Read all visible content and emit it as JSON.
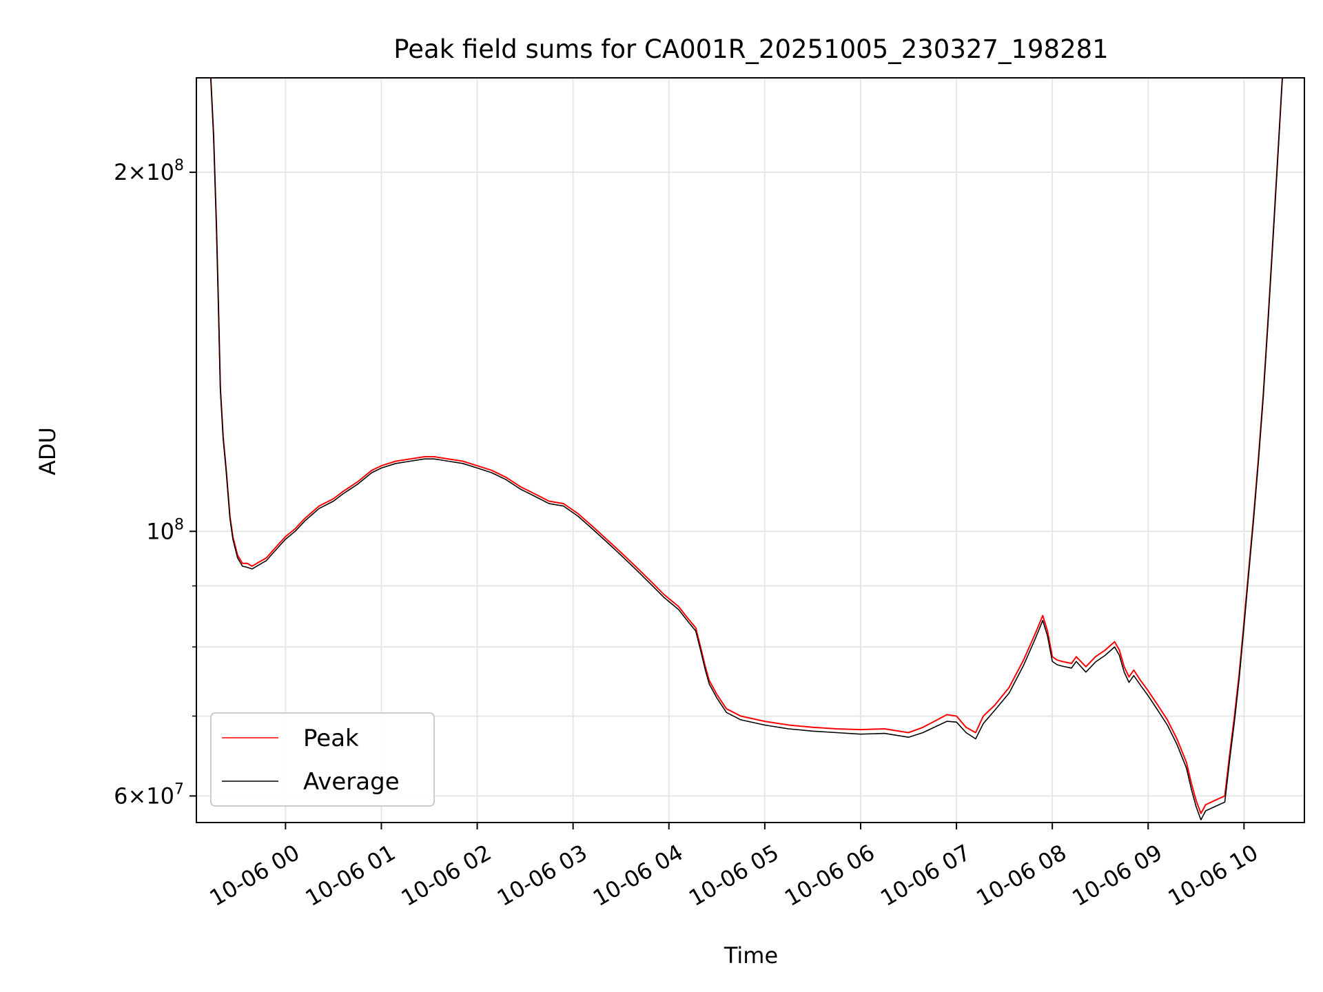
{
  "chart_data": {
    "type": "line",
    "title": "Peak field sums for CA001R_20251005_230327_198281",
    "xlabel": "Time",
    "ylabel": "ADU",
    "yscale": "log",
    "ylim": [
      57000000,
      240000000
    ],
    "xlim_hours": [
      -0.93,
      10.63
    ],
    "x_ticks": [
      {
        "value": 0,
        "label": "10-06 00"
      },
      {
        "value": 1,
        "label": "10-06 01"
      },
      {
        "value": 2,
        "label": "10-06 02"
      },
      {
        "value": 3,
        "label": "10-06 03"
      },
      {
        "value": 4,
        "label": "10-06 04"
      },
      {
        "value": 5,
        "label": "10-06 05"
      },
      {
        "value": 6,
        "label": "10-06 06"
      },
      {
        "value": 7,
        "label": "10-06 07"
      },
      {
        "value": 8,
        "label": "10-06 08"
      },
      {
        "value": 9,
        "label": "10-06 09"
      },
      {
        "value": 10,
        "label": "10-06 10"
      }
    ],
    "y_major_ticks": [
      {
        "value": 60000000,
        "mantissa": "6",
        "exponent": "7"
      },
      {
        "value": 100000000,
        "mantissa": "",
        "exponent": "8"
      },
      {
        "value": 200000000,
        "mantissa": "2",
        "exponent": "8"
      }
    ],
    "y_minor_ticks": [
      70000000,
      80000000,
      90000000
    ],
    "grid": true,
    "legend_position": "lower-left",
    "x_hours": [
      -0.78,
      -0.75,
      -0.72,
      -0.7,
      -0.68,
      -0.65,
      -0.62,
      -0.58,
      -0.55,
      -0.5,
      -0.45,
      -0.4,
      -0.35,
      -0.3,
      -0.25,
      -0.2,
      -0.15,
      -0.1,
      -0.05,
      0.0,
      0.1,
      0.2,
      0.35,
      0.5,
      0.6,
      0.75,
      0.9,
      1.0,
      1.15,
      1.3,
      1.45,
      1.55,
      1.7,
      1.85,
      2.0,
      2.15,
      2.3,
      2.45,
      2.6,
      2.75,
      2.9,
      3.05,
      3.2,
      3.35,
      3.5,
      3.65,
      3.8,
      3.95,
      4.1,
      4.2,
      4.28,
      4.33,
      4.38,
      4.42,
      4.5,
      4.6,
      4.75,
      5.0,
      5.25,
      5.5,
      5.75,
      6.0,
      6.25,
      6.5,
      6.65,
      6.8,
      6.9,
      7.0,
      7.1,
      7.2,
      7.28,
      7.4,
      7.55,
      7.7,
      7.82,
      7.9,
      7.95,
      8.0,
      8.05,
      8.1,
      8.2,
      8.25,
      8.35,
      8.45,
      8.55,
      8.65,
      8.7,
      8.75,
      8.8,
      8.85,
      8.92,
      9.0,
      9.1,
      9.2,
      9.3,
      9.4,
      9.45,
      9.5,
      9.55,
      9.6,
      9.7,
      9.8,
      9.85,
      9.9,
      9.95,
      10.0,
      10.05,
      10.1,
      10.15,
      10.2,
      10.25,
      10.3,
      10.35,
      10.4,
      10.45,
      10.5,
      10.55,
      10.6
    ],
    "series": [
      {
        "name": "Peak",
        "color": "#ff0000",
        "values": [
          240000000,
          215000000,
          180000000,
          155000000,
          132000000,
          120000000,
          113000000,
          103000000,
          99000000,
          95500000,
          94000000,
          94000000,
          93500000,
          94000000,
          94500000,
          95000000,
          96000000,
          97000000,
          98000000,
          99000000,
          100500000,
          102500000,
          105000000,
          106500000,
          108000000,
          110000000,
          112500000,
          113500000,
          114500000,
          115000000,
          115500000,
          115500000,
          115000000,
          114500000,
          113500000,
          112500000,
          111000000,
          109000000,
          107500000,
          106000000,
          105500000,
          103500000,
          101000000,
          98500000,
          96000000,
          93500000,
          91000000,
          88500000,
          86500000,
          84500000,
          83000000,
          80000000,
          77000000,
          75000000,
          73000000,
          71000000,
          70000000,
          69300000,
          68800000,
          68500000,
          68300000,
          68200000,
          68300000,
          67800000,
          68500000,
          69500000,
          70200000,
          70000000,
          68500000,
          67800000,
          70000000,
          71500000,
          74000000,
          78000000,
          82000000,
          85000000,
          82500000,
          78500000,
          78000000,
          77800000,
          77500000,
          78500000,
          77000000,
          78500000,
          79500000,
          80800000,
          79500000,
          77000000,
          75500000,
          76500000,
          75000000,
          73500000,
          71500000,
          69500000,
          67000000,
          64000000,
          61500000,
          59500000,
          58000000,
          59000000,
          59500000,
          60000000,
          65000000,
          70000000,
          76000000,
          84000000,
          93000000,
          103000000,
          115000000,
          130000000,
          150000000,
          175000000,
          205000000,
          240000000,
          240000000,
          240000000,
          240000000,
          240000000
        ]
      },
      {
        "name": "Average",
        "color": "#000000",
        "values": [
          240000000,
          214000000,
          179000000,
          154000000,
          131500000,
          119500000,
          112500000,
          102500000,
          98500000,
          95000000,
          93500000,
          93300000,
          93000000,
          93500000,
          94000000,
          94500000,
          95500000,
          96500000,
          97500000,
          98500000,
          100000000,
          102000000,
          104500000,
          106000000,
          107500000,
          109500000,
          112000000,
          113000000,
          114000000,
          114500000,
          115000000,
          115000000,
          114500000,
          114000000,
          113000000,
          112000000,
          110500000,
          108500000,
          107000000,
          105500000,
          105000000,
          103000000,
          100500000,
          98000000,
          95500000,
          93000000,
          90500000,
          88000000,
          86000000,
          84000000,
          82500000,
          79500000,
          76500000,
          74500000,
          72500000,
          70500000,
          69500000,
          68800000,
          68300000,
          68000000,
          67800000,
          67600000,
          67700000,
          67200000,
          67800000,
          68700000,
          69300000,
          69200000,
          67800000,
          67000000,
          69000000,
          70800000,
          73200000,
          77200000,
          81200000,
          84200000,
          81700000,
          77800000,
          77300000,
          77100000,
          76800000,
          77800000,
          76200000,
          77700000,
          78700000,
          80000000,
          78700000,
          76200000,
          74700000,
          75700000,
          74300000,
          72800000,
          70800000,
          68800000,
          66300000,
          63300000,
          60800000,
          58800000,
          57300000,
          58300000,
          58800000,
          59300000,
          64300000,
          69300000,
          75300000,
          83300000,
          92300000,
          102300000,
          114300000,
          129300000,
          149300000,
          174300000,
          204300000,
          240000000,
          240000000,
          240000000,
          240000000,
          240000000
        ]
      }
    ]
  }
}
